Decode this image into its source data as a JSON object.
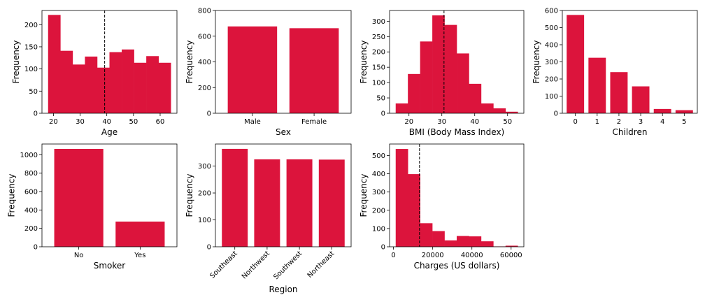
{
  "bar_color": "#dc143c",
  "chart_data": [
    {
      "type": "histogram",
      "xlabel": "Age",
      "ylabel": "Frequency",
      "bin_edges": [
        18,
        22.6,
        27.2,
        31.8,
        36.4,
        41,
        45.6,
        50.2,
        54.8,
        59.4,
        64
      ],
      "values": [
        222,
        141,
        110,
        128,
        103,
        138,
        144,
        114,
        129,
        114
      ],
      "xlim": [
        15.7,
        66.3
      ],
      "ylim": [
        0,
        232
      ],
      "xticks": [
        20,
        30,
        40,
        50,
        60
      ],
      "yticks": [
        0,
        50,
        100,
        150,
        200
      ],
      "mean_line": 39.2
    },
    {
      "type": "bar",
      "xlabel": "Sex",
      "ylabel": "Frequency",
      "categories": [
        "Male",
        "Female"
      ],
      "values": [
        676,
        662
      ],
      "ylim": [
        0,
        800
      ],
      "yticks": [
        0,
        200,
        400,
        600,
        800
      ]
    },
    {
      "type": "histogram",
      "xlabel": "BMI (Body Mass Index)",
      "ylabel": "Frequency",
      "bin_edges": [
        15.96,
        19.67,
        23.39,
        27.1,
        30.81,
        34.53,
        38.24,
        41.95,
        45.67,
        49.38,
        53.09
      ],
      "values": [
        32,
        128,
        234,
        319,
        288,
        195,
        96,
        32,
        16,
        5
      ],
      "xlim": [
        14.1,
        54.95
      ],
      "ylim": [
        0,
        335
      ],
      "xticks": [
        20,
        30,
        40,
        50
      ],
      "yticks": [
        0,
        50,
        100,
        150,
        200,
        250,
        300
      ],
      "mean_line": 30.66
    },
    {
      "type": "bar",
      "xlabel": "Children",
      "ylabel": "Frequency",
      "categories": [
        "0",
        "1",
        "2",
        "3",
        "4",
        "5"
      ],
      "values": [
        574,
        324,
        240,
        157,
        25,
        18
      ],
      "ylim": [
        0,
        600
      ],
      "yticks": [
        0,
        100,
        200,
        300,
        400,
        500,
        600
      ]
    },
    {
      "type": "bar",
      "xlabel": "Smoker",
      "ylabel": "Frequency",
      "categories": [
        "No",
        "Yes"
      ],
      "values": [
        1064,
        274
      ],
      "ylim": [
        0,
        1117
      ],
      "yticks": [
        0,
        200,
        400,
        600,
        800,
        1000
      ]
    },
    {
      "type": "bar",
      "xlabel": "Region",
      "ylabel": "Frequency",
      "categories": [
        "Southeast",
        "Northwest",
        "Southwest",
        "Northeast"
      ],
      "values": [
        364,
        325,
        325,
        324
      ],
      "ylim": [
        0,
        382
      ],
      "yticks": [
        0,
        100,
        200,
        300
      ],
      "rotate_xticks": 45
    },
    {
      "type": "histogram",
      "xlabel": "Charges (US dollars)",
      "ylabel": "Frequency",
      "bin_edges": [
        1122,
        7347,
        13572,
        19797,
        26022,
        32247,
        38472,
        44697,
        50922,
        57147,
        63372
      ],
      "values": [
        536,
        398,
        129,
        86,
        35,
        59,
        57,
        30,
        2,
        6
      ],
      "xlim": [
        -2000,
        66500
      ],
      "ylim": [
        0,
        563
      ],
      "xticks": [
        0,
        20000,
        40000,
        60000
      ],
      "yticks": [
        0,
        100,
        200,
        300,
        400,
        500
      ],
      "mean_line": 13270
    }
  ]
}
